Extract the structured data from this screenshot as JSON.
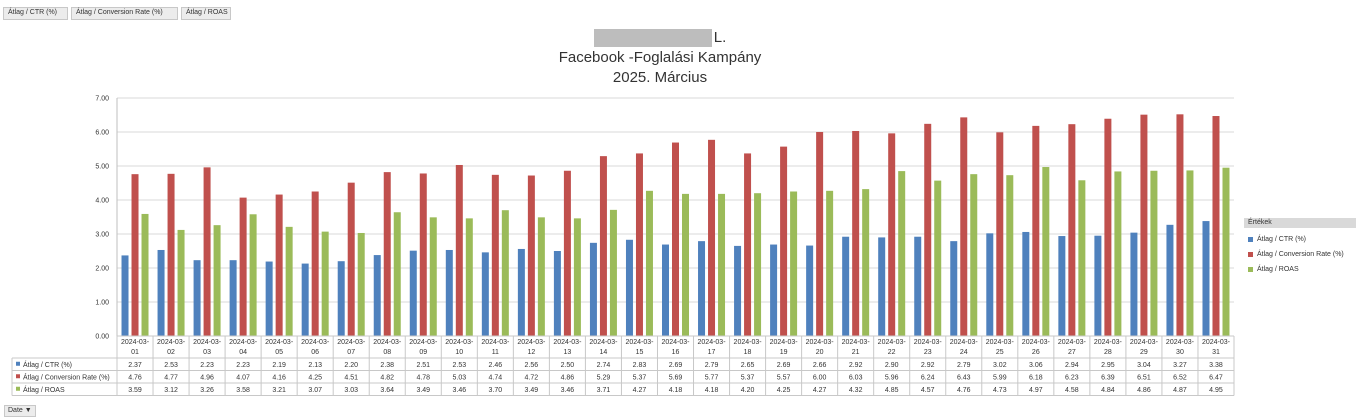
{
  "field_buttons": [
    "Átlag / CTR (%)",
    "Átlag / Conversion Rate (%)",
    "Átlag / ROAS"
  ],
  "title": {
    "line1_suffix": "L.",
    "line2": "Facebook -Foglalási Kampány",
    "line3": "2025. Március"
  },
  "legend": {
    "header": "Értékek",
    "items": [
      {
        "label": "Átlag / CTR (%)",
        "color": "#4f81bd"
      },
      {
        "label": "Átlag / Conversion Rate (%)",
        "color": "#c0504d"
      },
      {
        "label": "Átlag / ROAS",
        "color": "#9bbb59"
      }
    ]
  },
  "date_filter": {
    "label": "Date",
    "icon": "dropdown-arrow-icon"
  },
  "chart_data": {
    "type": "bar",
    "ylim": [
      0,
      7
    ],
    "yticks": [
      "0.00",
      "1.00",
      "2.00",
      "3.00",
      "4.00",
      "5.00",
      "6.00",
      "7.00"
    ],
    "grid": true,
    "legend_position": "right",
    "categories": [
      [
        "2024-03-",
        "01"
      ],
      [
        "2024-03-",
        "02"
      ],
      [
        "2024-03-",
        "03"
      ],
      [
        "2024-03-",
        "04"
      ],
      [
        "2024-03-",
        "05"
      ],
      [
        "2024-03-",
        "06"
      ],
      [
        "2024-03-",
        "07"
      ],
      [
        "2024-03-",
        "08"
      ],
      [
        "2024-03-",
        "09"
      ],
      [
        "2024-03-",
        "10"
      ],
      [
        "2024-03-",
        "11"
      ],
      [
        "2024-03-",
        "12"
      ],
      [
        "2024-03-",
        "13"
      ],
      [
        "2024-03-",
        "14"
      ],
      [
        "2024-03-",
        "15"
      ],
      [
        "2024-03-",
        "16"
      ],
      [
        "2024-03-",
        "17"
      ],
      [
        "2024-03-",
        "18"
      ],
      [
        "2024-03-",
        "19"
      ],
      [
        "2024-03-",
        "20"
      ],
      [
        "2024-03-",
        "21"
      ],
      [
        "2024-03-",
        "22"
      ],
      [
        "2024-03-",
        "23"
      ],
      [
        "2024-03-",
        "24"
      ],
      [
        "2024-03-",
        "25"
      ],
      [
        "2024-03-",
        "26"
      ],
      [
        "2024-03-",
        "27"
      ],
      [
        "2024-03-",
        "28"
      ],
      [
        "2024-03-",
        "29"
      ],
      [
        "2024-03-",
        "30"
      ],
      [
        "2024-03-",
        "31"
      ]
    ],
    "series": [
      {
        "name": "Átlag / CTR (%)",
        "color": "#4f81bd",
        "values": [
          2.37,
          2.53,
          2.23,
          2.23,
          2.19,
          2.13,
          2.2,
          2.38,
          2.51,
          2.53,
          2.46,
          2.56,
          2.5,
          2.74,
          2.83,
          2.69,
          2.79,
          2.65,
          2.69,
          2.66,
          2.92,
          2.9,
          2.92,
          2.79,
          3.02,
          3.06,
          2.94,
          2.95,
          3.04,
          3.27,
          3.38
        ]
      },
      {
        "name": "Átlag / Conversion Rate (%)",
        "color": "#c0504d",
        "values": [
          4.76,
          4.77,
          4.96,
          4.07,
          4.16,
          4.25,
          4.51,
          4.82,
          4.78,
          5.03,
          4.74,
          4.72,
          4.86,
          5.29,
          5.37,
          5.69,
          5.77,
          5.37,
          5.57,
          6.0,
          6.03,
          5.96,
          6.24,
          6.43,
          5.99,
          6.18,
          6.23,
          6.39,
          6.51,
          6.52,
          6.47
        ]
      },
      {
        "name": "Átlag / ROAS",
        "color": "#9bbb59",
        "values": [
          3.59,
          3.12,
          3.26,
          3.58,
          3.21,
          3.07,
          3.03,
          3.64,
          3.49,
          3.46,
          3.7,
          3.49,
          3.46,
          3.71,
          4.27,
          4.18,
          4.18,
          4.2,
          4.25,
          4.27,
          4.32,
          4.85,
          4.57,
          4.76,
          4.73,
          4.97,
          4.58,
          4.84,
          4.86,
          4.87,
          4.95
        ]
      }
    ],
    "table_labels": [
      "Átlag / CTR (%)",
      "Átlag / Conversion Rate (%)",
      "Átlag / ROAS"
    ]
  }
}
